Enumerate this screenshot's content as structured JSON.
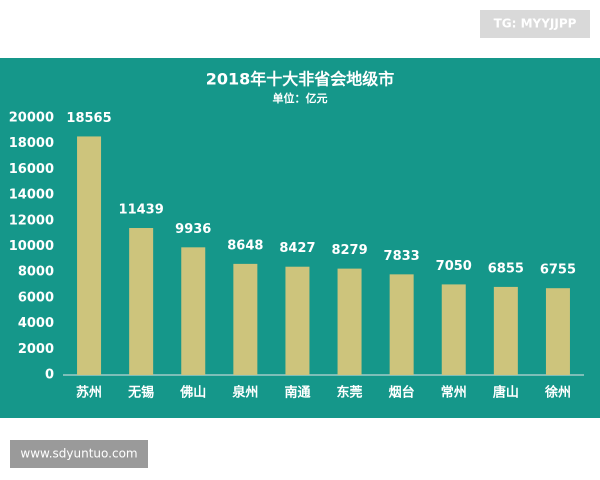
{
  "badge": "TG: MYYJJPP",
  "footer": "www.sdyuntuo.com",
  "chart_data": {
    "type": "bar",
    "title": "2018年十大非省会地级市",
    "subtitle": "单位：亿元",
    "categories": [
      "苏州",
      "无锡",
      "佛山",
      "泉州",
      "南通",
      "东莞",
      "烟台",
      "常州",
      "唐山",
      "徐州"
    ],
    "values": [
      18565,
      11439,
      9936,
      8648,
      8427,
      8279,
      7833,
      7050,
      6855,
      6755
    ],
    "color": "#cdc47c",
    "ylim": [
      0,
      20000
    ],
    "yticks": [
      0,
      2000,
      4000,
      6000,
      8000,
      10000,
      12000,
      14000,
      16000,
      18000,
      20000
    ],
    "grid": false
  }
}
